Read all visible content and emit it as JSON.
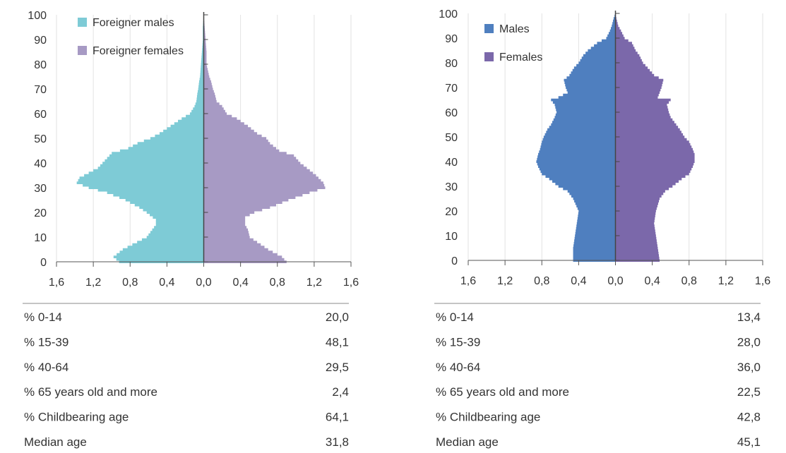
{
  "chart_data": [
    {
      "type": "bar",
      "orientation": "horizontal",
      "subtype": "population-pyramid",
      "y_ticks": [
        "0",
        "10",
        "20",
        "30",
        "40",
        "50",
        "60",
        "70",
        "80",
        "90",
        "100"
      ],
      "x_ticks": [
        "1,6",
        "1,2",
        "0,8",
        "0,4",
        "0,0",
        "0,4",
        "0,8",
        "1,2",
        "1,6"
      ],
      "xlim": [
        -1.6,
        1.6
      ],
      "ylim": [
        0,
        100
      ],
      "legend_position": "top-left",
      "series": [
        {
          "name": "Foreigner males",
          "color": "#7ecbd6",
          "side": "left",
          "ages": [
            0,
            2,
            5,
            10,
            15,
            17,
            20,
            22,
            25,
            28,
            30,
            32,
            34,
            36,
            38,
            40,
            42,
            44,
            46,
            48,
            50,
            52,
            55,
            58,
            60,
            63,
            65,
            68,
            70,
            73,
            75,
            80,
            85,
            90,
            95,
            100
          ],
          "values": [
            0.92,
            0.98,
            0.88,
            0.62,
            0.52,
            0.52,
            0.62,
            0.7,
            0.85,
            1.05,
            1.25,
            1.38,
            1.35,
            1.25,
            1.15,
            1.1,
            1.05,
            1.0,
            0.82,
            0.72,
            0.58,
            0.48,
            0.36,
            0.24,
            0.15,
            0.1,
            0.08,
            0.07,
            0.06,
            0.05,
            0.04,
            0.03,
            0.02,
            0.01,
            0.01,
            0.0
          ]
        },
        {
          "name": "Foreigner females",
          "color": "#a79ac4",
          "side": "right",
          "ages": [
            0,
            2,
            5,
            10,
            13,
            15,
            18,
            20,
            22,
            25,
            28,
            30,
            32,
            35,
            38,
            40,
            43,
            45,
            48,
            50,
            52,
            55,
            58,
            60,
            63,
            65,
            68,
            70,
            73,
            75,
            80,
            85,
            90,
            95,
            100
          ],
          "values": [
            0.9,
            0.85,
            0.7,
            0.5,
            0.48,
            0.45,
            0.45,
            0.55,
            0.72,
            0.92,
            1.15,
            1.32,
            1.3,
            1.22,
            1.12,
            1.05,
            0.98,
            0.82,
            0.72,
            0.68,
            0.58,
            0.48,
            0.36,
            0.25,
            0.2,
            0.14,
            0.12,
            0.1,
            0.08,
            0.06,
            0.03,
            0.03,
            0.02,
            0.01,
            0.0
          ]
        }
      ]
    },
    {
      "type": "bar",
      "orientation": "horizontal",
      "subtype": "population-pyramid",
      "y_ticks": [
        "0",
        "10",
        "20",
        "30",
        "40",
        "50",
        "60",
        "70",
        "80",
        "90",
        "100"
      ],
      "x_ticks": [
        "1,6",
        "1,2",
        "0,8",
        "0,4",
        "0,0",
        "0,4",
        "0,8",
        "1,2",
        "1,6"
      ],
      "xlim": [
        -1.6,
        1.6
      ],
      "ylim": [
        0,
        100
      ],
      "legend_position": "top-left",
      "series": [
        {
          "name": "Males",
          "color": "#4f7fbf",
          "side": "left",
          "ages": [
            0,
            5,
            10,
            15,
            20,
            25,
            28,
            30,
            33,
            35,
            38,
            40,
            43,
            45,
            48,
            50,
            53,
            55,
            58,
            60,
            63,
            65,
            66,
            68,
            70,
            73,
            75,
            78,
            80,
            83,
            85,
            88,
            90,
            93,
            95,
            98,
            100
          ],
          "values": [
            0.46,
            0.46,
            0.44,
            0.42,
            0.4,
            0.46,
            0.52,
            0.62,
            0.72,
            0.8,
            0.84,
            0.86,
            0.84,
            0.82,
            0.8,
            0.78,
            0.74,
            0.7,
            0.66,
            0.64,
            0.66,
            0.7,
            0.62,
            0.52,
            0.54,
            0.56,
            0.5,
            0.45,
            0.4,
            0.35,
            0.3,
            0.2,
            0.1,
            0.06,
            0.04,
            0.02,
            0.0
          ]
        },
        {
          "name": "Females",
          "color": "#7b68aa",
          "side": "right",
          "ages": [
            0,
            5,
            10,
            15,
            20,
            25,
            28,
            30,
            33,
            35,
            38,
            40,
            43,
            45,
            48,
            50,
            53,
            55,
            58,
            60,
            63,
            65,
            66,
            68,
            70,
            73,
            75,
            78,
            80,
            83,
            85,
            88,
            90,
            93,
            95,
            98,
            100
          ],
          "values": [
            0.48,
            0.46,
            0.44,
            0.42,
            0.44,
            0.48,
            0.54,
            0.62,
            0.72,
            0.8,
            0.84,
            0.86,
            0.86,
            0.84,
            0.8,
            0.75,
            0.7,
            0.66,
            0.6,
            0.58,
            0.56,
            0.6,
            0.46,
            0.48,
            0.5,
            0.52,
            0.42,
            0.35,
            0.3,
            0.26,
            0.22,
            0.18,
            0.1,
            0.06,
            0.03,
            0.01,
            0.0
          ]
        }
      ]
    }
  ],
  "stats_left": [
    {
      "label": "% 0-14",
      "value": "20,0"
    },
    {
      "label": "% 15-39",
      "value": "48,1"
    },
    {
      "label": "% 40-64",
      "value": "29,5"
    },
    {
      "label": "% 65 years old and more",
      "value": "2,4"
    },
    {
      "label": "% Childbearing age",
      "value": "64,1"
    },
    {
      "label": "Median age",
      "value": "31,8"
    }
  ],
  "stats_right": [
    {
      "label": "% 0-14",
      "value": "13,4"
    },
    {
      "label": "% 15-39",
      "value": "28,0"
    },
    {
      "label": "% 40-64",
      "value": "36,0"
    },
    {
      "label": "% 65 years old and more",
      "value": "22,5"
    },
    {
      "label": "% Childbearing age",
      "value": "42,8"
    },
    {
      "label": "Median age",
      "value": "45,1"
    }
  ]
}
